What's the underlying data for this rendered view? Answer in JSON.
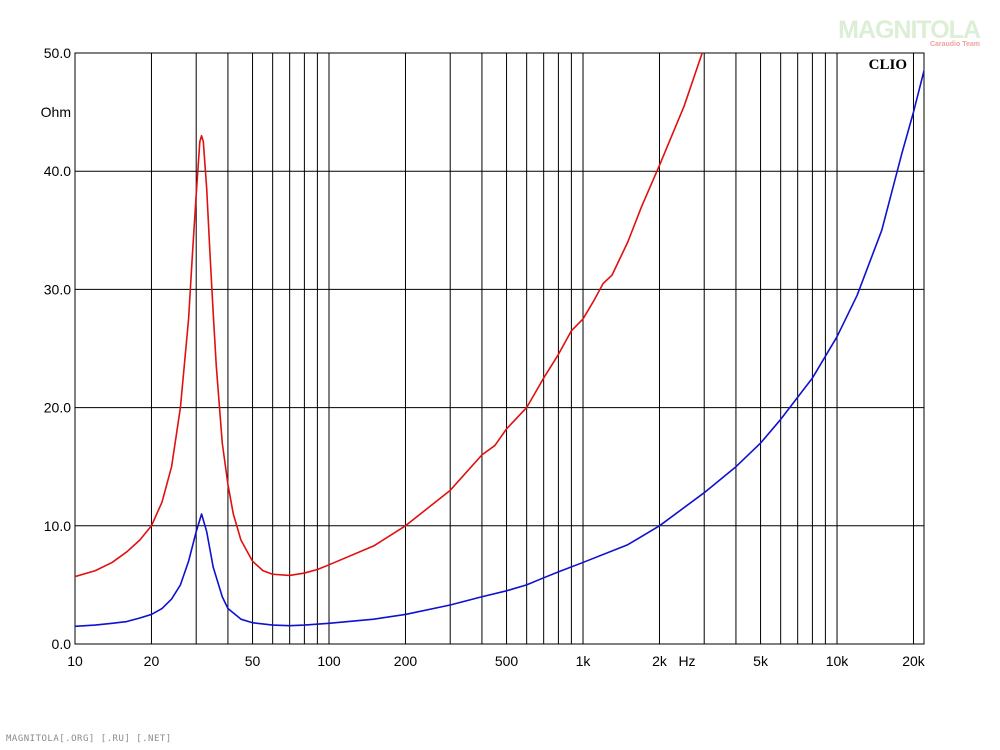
{
  "watermark": {
    "brand": "MAGNITOLA",
    "sub": "Caraudio Team"
  },
  "footer_text": "MAGNITOLA[.ORG] [.RU] [.NET]",
  "chart_data": {
    "type": "line",
    "title": "",
    "brand_label": "CLIO",
    "ylabel": "Ohm",
    "xlabel": "Hz",
    "x_scale": "log",
    "xlim": [
      10,
      22000
    ],
    "ylim": [
      0,
      50
    ],
    "grid": true,
    "y_ticks": [
      {
        "value": 0,
        "label": "0.0"
      },
      {
        "value": 10,
        "label": "10.0"
      },
      {
        "value": 20,
        "label": "20.0"
      },
      {
        "value": 30,
        "label": "30.0"
      },
      {
        "value": 40,
        "label": "40.0"
      },
      {
        "value": 50,
        "label": "50.0"
      }
    ],
    "x_ticks": [
      {
        "value": 10,
        "label": "10"
      },
      {
        "value": 20,
        "label": "20"
      },
      {
        "value": 50,
        "label": "50"
      },
      {
        "value": 100,
        "label": "100"
      },
      {
        "value": 200,
        "label": "200"
      },
      {
        "value": 500,
        "label": "500"
      },
      {
        "value": 1000,
        "label": "1k"
      },
      {
        "value": 2000,
        "label": "2k"
      },
      {
        "value": 5000,
        "label": "5k"
      },
      {
        "value": 10000,
        "label": "10k"
      },
      {
        "value": 20000,
        "label": "20k"
      }
    ],
    "series": [
      {
        "color": "#e01010",
        "points": [
          [
            10,
            5.7
          ],
          [
            12,
            6.2
          ],
          [
            14,
            6.9
          ],
          [
            16,
            7.8
          ],
          [
            18,
            8.8
          ],
          [
            20,
            10.0
          ],
          [
            22,
            12.0
          ],
          [
            24,
            15.0
          ],
          [
            26,
            20.0
          ],
          [
            28,
            27.5
          ],
          [
            29,
            33.0
          ],
          [
            30,
            38.0
          ],
          [
            31,
            42.5
          ],
          [
            31.5,
            43.0
          ],
          [
            32,
            42.5
          ],
          [
            33,
            38.5
          ],
          [
            34,
            33.0
          ],
          [
            35,
            28.0
          ],
          [
            36,
            23.5
          ],
          [
            38,
            17.0
          ],
          [
            40,
            13.5
          ],
          [
            42,
            11.0
          ],
          [
            45,
            8.8
          ],
          [
            50,
            7.0
          ],
          [
            55,
            6.2
          ],
          [
            60,
            5.9
          ],
          [
            70,
            5.8
          ],
          [
            80,
            6.0
          ],
          [
            90,
            6.3
          ],
          [
            100,
            6.7
          ],
          [
            150,
            8.3
          ],
          [
            200,
            10.0
          ],
          [
            300,
            13.0
          ],
          [
            400,
            16.0
          ],
          [
            450,
            16.8
          ],
          [
            500,
            18.2
          ],
          [
            600,
            20.0
          ],
          [
            700,
            22.5
          ],
          [
            800,
            24.5
          ],
          [
            900,
            26.5
          ],
          [
            1000,
            27.5
          ],
          [
            1100,
            29.0
          ],
          [
            1200,
            30.5
          ],
          [
            1300,
            31.2
          ],
          [
            1500,
            34.0
          ],
          [
            1700,
            37.0
          ],
          [
            2000,
            40.5
          ],
          [
            2500,
            45.5
          ],
          [
            3000,
            50.5
          ]
        ]
      },
      {
        "color": "#1010d0",
        "points": [
          [
            10,
            1.5
          ],
          [
            12,
            1.6
          ],
          [
            14,
            1.75
          ],
          [
            16,
            1.9
          ],
          [
            18,
            2.2
          ],
          [
            20,
            2.5
          ],
          [
            22,
            3.0
          ],
          [
            24,
            3.8
          ],
          [
            26,
            5.0
          ],
          [
            28,
            7.0
          ],
          [
            30,
            9.5
          ],
          [
            31.5,
            11.0
          ],
          [
            33,
            9.5
          ],
          [
            35,
            6.5
          ],
          [
            38,
            4.0
          ],
          [
            40,
            3.0
          ],
          [
            45,
            2.1
          ],
          [
            50,
            1.8
          ],
          [
            60,
            1.6
          ],
          [
            70,
            1.55
          ],
          [
            80,
            1.6
          ],
          [
            100,
            1.75
          ],
          [
            150,
            2.1
          ],
          [
            200,
            2.5
          ],
          [
            300,
            3.3
          ],
          [
            400,
            4.0
          ],
          [
            500,
            4.5
          ],
          [
            600,
            5.0
          ],
          [
            700,
            5.6
          ],
          [
            800,
            6.1
          ],
          [
            1000,
            6.9
          ],
          [
            1500,
            8.4
          ],
          [
            2000,
            10.0
          ],
          [
            3000,
            12.8
          ],
          [
            4000,
            15.0
          ],
          [
            5000,
            17.0
          ],
          [
            6000,
            19.0
          ],
          [
            8000,
            22.5
          ],
          [
            10000,
            26.0
          ],
          [
            12000,
            29.5
          ],
          [
            15000,
            35.0
          ],
          [
            18000,
            41.5
          ],
          [
            20000,
            45.0
          ],
          [
            22000,
            48.5
          ]
        ]
      }
    ]
  }
}
